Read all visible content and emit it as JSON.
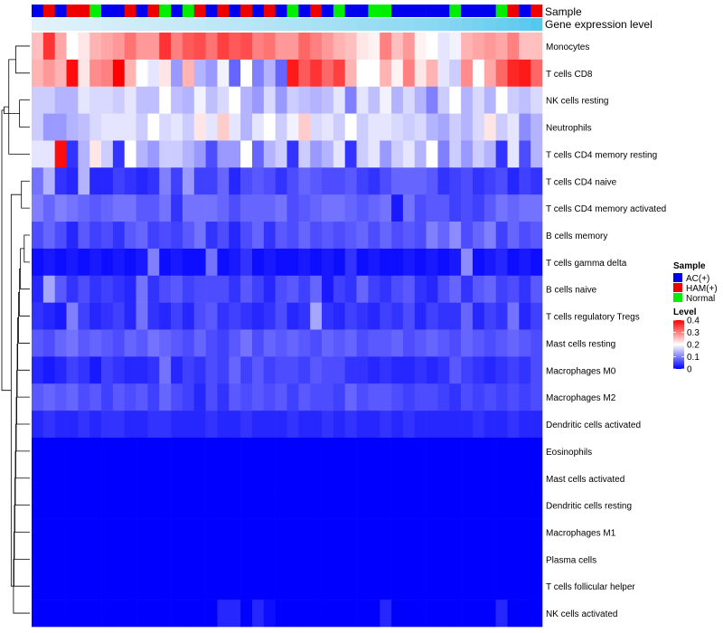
{
  "chart_data": {
    "type": "heatmap",
    "title": "",
    "annotation_tracks": [
      "Sample",
      "Gene expression level"
    ],
    "sample_groups": [
      "AC(+)",
      "HAM(+)",
      "AC(+)",
      "HAM(+)",
      "HAM(+)",
      "Normal",
      "AC(+)",
      "AC(+)",
      "HAM(+)",
      "AC(+)",
      "HAM(+)",
      "Normal",
      "AC(+)",
      "Normal",
      "HAM(+)",
      "AC(+)",
      "HAM(+)",
      "AC(+)",
      "HAM(+)",
      "AC(+)",
      "HAM(+)",
      "AC(+)",
      "Normal",
      "AC(+)",
      "HAM(+)",
      "AC(+)",
      "Normal",
      "AC(+)",
      "AC(+)",
      "Normal",
      "Normal",
      "AC(+)",
      "AC(+)",
      "AC(+)",
      "AC(+)",
      "AC(+)",
      "Normal",
      "AC(+)",
      "AC(+)",
      "AC(+)",
      "Normal",
      "HAM(+)",
      "AC(+)",
      "HAM(+)"
    ],
    "gene_expression_level": [
      0.05,
      0.06,
      0.07,
      0.09,
      0.1,
      0.12,
      0.14,
      0.15,
      0.17,
      0.19,
      0.2,
      0.21,
      0.23,
      0.24,
      0.26,
      0.28,
      0.3,
      0.31,
      0.33,
      0.35,
      0.37,
      0.38,
      0.4,
      0.42,
      0.44,
      0.46,
      0.48,
      0.5,
      0.52,
      0.54,
      0.56,
      0.58,
      0.6,
      0.62,
      0.64,
      0.66,
      0.7,
      0.74,
      0.78,
      0.82,
      0.86,
      0.9,
      0.95,
      1.0
    ],
    "rows": [
      "Monocytes",
      "T cells CD8",
      "NK cells resting",
      "Neutrophils",
      "T cells CD4 memory resting",
      "T cells CD4 naive",
      "T cells CD4 memory activated",
      "B cells memory",
      "T cells gamma delta",
      "B cells naive",
      "T cells regulatory  Tregs",
      "Mast cells resting",
      "Macrophages M0",
      "Macrophages M2",
      "Dendritic cells activated",
      "Eosinophils",
      "Mast cells activated",
      "Dendritic cells resting",
      "Macrophages M1",
      "Plasma cells",
      "T cells follicular helper",
      "NK cells activated"
    ],
    "values": [
      [
        0.25,
        0.36,
        0.27,
        0.2,
        0.22,
        0.26,
        0.27,
        0.28,
        0.31,
        0.28,
        0.28,
        0.36,
        0.3,
        0.33,
        0.34,
        0.31,
        0.35,
        0.33,
        0.34,
        0.3,
        0.31,
        0.28,
        0.28,
        0.32,
        0.3,
        0.28,
        0.26,
        0.25,
        0.22,
        0.21,
        0.3,
        0.25,
        0.28,
        0.21,
        0.2,
        0.18,
        0.19,
        0.26,
        0.27,
        0.28,
        0.27,
        0.3,
        0.25,
        0.25
      ],
      [
        0.26,
        0.28,
        0.26,
        0.39,
        0.22,
        0.29,
        0.3,
        0.4,
        0.26,
        0.2,
        0.18,
        0.22,
        0.12,
        0.26,
        0.14,
        0.12,
        0.19,
        0.08,
        0.2,
        0.1,
        0.14,
        0.08,
        0.38,
        0.33,
        0.36,
        0.32,
        0.35,
        0.26,
        0.2,
        0.2,
        0.26,
        0.21,
        0.3,
        0.22,
        0.26,
        0.18,
        0.16,
        0.29,
        0.2,
        0.27,
        0.32,
        0.37,
        0.38,
        0.32
      ],
      [
        0.16,
        0.16,
        0.14,
        0.14,
        0.18,
        0.17,
        0.17,
        0.16,
        0.18,
        0.15,
        0.15,
        0.2,
        0.15,
        0.14,
        0.19,
        0.15,
        0.17,
        0.2,
        0.14,
        0.12,
        0.17,
        0.12,
        0.16,
        0.15,
        0.14,
        0.15,
        0.18,
        0.1,
        0.18,
        0.15,
        0.19,
        0.14,
        0.17,
        0.14,
        0.1,
        0.16,
        0.2,
        0.14,
        0.17,
        0.14,
        0.2,
        0.16,
        0.15,
        0.17
      ],
      [
        0.16,
        0.12,
        0.12,
        0.14,
        0.15,
        0.17,
        0.18,
        0.18,
        0.18,
        0.16,
        0.2,
        0.17,
        0.18,
        0.16,
        0.22,
        0.18,
        0.24,
        0.18,
        0.14,
        0.18,
        0.2,
        0.16,
        0.19,
        0.24,
        0.17,
        0.18,
        0.16,
        0.2,
        0.16,
        0.18,
        0.18,
        0.17,
        0.16,
        0.17,
        0.14,
        0.13,
        0.16,
        0.14,
        0.17,
        0.22,
        0.16,
        0.18,
        0.11,
        0.14
      ],
      [
        0.18,
        0.18,
        0.39,
        0.04,
        0.14,
        0.22,
        0.16,
        0.04,
        0.2,
        0.14,
        0.12,
        0.16,
        0.16,
        0.14,
        0.12,
        0.06,
        0.12,
        0.12,
        0.2,
        0.08,
        0.14,
        0.16,
        0.04,
        0.16,
        0.12,
        0.14,
        0.18,
        0.04,
        0.16,
        0.18,
        0.12,
        0.16,
        0.18,
        0.14,
        0.2,
        0.1,
        0.16,
        0.12,
        0.16,
        0.14,
        0.04,
        0.18,
        0.06,
        0.14
      ],
      [
        0.09,
        0.14,
        0.04,
        0.03,
        0.14,
        0.03,
        0.03,
        0.05,
        0.04,
        0.03,
        0.04,
        0.1,
        0.05,
        0.12,
        0.05,
        0.05,
        0.08,
        0.03,
        0.06,
        0.07,
        0.06,
        0.04,
        0.06,
        0.08,
        0.07,
        0.06,
        0.06,
        0.07,
        0.05,
        0.04,
        0.06,
        0.08,
        0.08,
        0.08,
        0.07,
        0.04,
        0.05,
        0.06,
        0.04,
        0.05,
        0.06,
        0.03,
        0.05,
        0.04
      ],
      [
        0.1,
        0.08,
        0.1,
        0.09,
        0.08,
        0.07,
        0.08,
        0.09,
        0.09,
        0.07,
        0.07,
        0.09,
        0.04,
        0.09,
        0.09,
        0.09,
        0.08,
        0.06,
        0.08,
        0.08,
        0.08,
        0.09,
        0.06,
        0.07,
        0.08,
        0.09,
        0.09,
        0.08,
        0.07,
        0.08,
        0.09,
        0.02,
        0.09,
        0.06,
        0.07,
        0.07,
        0.05,
        0.06,
        0.05,
        0.07,
        0.09,
        0.08,
        0.09,
        0.09
      ],
      [
        0.06,
        0.08,
        0.06,
        0.03,
        0.07,
        0.05,
        0.06,
        0.04,
        0.07,
        0.08,
        0.05,
        0.06,
        0.05,
        0.07,
        0.09,
        0.04,
        0.06,
        0.03,
        0.06,
        0.08,
        0.04,
        0.07,
        0.06,
        0.08,
        0.06,
        0.07,
        0.06,
        0.07,
        0.08,
        0.06,
        0.08,
        0.06,
        0.07,
        0.06,
        0.1,
        0.08,
        0.11,
        0.06,
        0.08,
        0.1,
        0.05,
        0.08,
        0.06,
        0.07
      ],
      [
        0.01,
        0.02,
        0.01,
        0.02,
        0.01,
        0.02,
        0.01,
        0.02,
        0.01,
        0.02,
        0.1,
        0.01,
        0.02,
        0.01,
        0.01,
        0.09,
        0.01,
        0.02,
        0.04,
        0.01,
        0.02,
        0.01,
        0.01,
        0.02,
        0.01,
        0.02,
        0.01,
        0.04,
        0.01,
        0.02,
        0.01,
        0.01,
        0.02,
        0.01,
        0.02,
        0.01,
        0.02,
        0.11,
        0.01,
        0.02,
        0.03,
        0.01,
        0.02,
        0.01
      ],
      [
        0.03,
        0.13,
        0.07,
        0.04,
        0.06,
        0.04,
        0.05,
        0.04,
        0.03,
        0.09,
        0.04,
        0.06,
        0.07,
        0.05,
        0.06,
        0.06,
        0.06,
        0.04,
        0.07,
        0.05,
        0.03,
        0.06,
        0.07,
        0.05,
        0.08,
        0.02,
        0.05,
        0.04,
        0.08,
        0.05,
        0.04,
        0.06,
        0.07,
        0.04,
        0.03,
        0.06,
        0.08,
        0.04,
        0.07,
        0.08,
        0.05,
        0.06,
        0.04,
        0.07
      ],
      [
        0.04,
        0.03,
        0.02,
        0.1,
        0.05,
        0.03,
        0.04,
        0.05,
        0.03,
        0.09,
        0.04,
        0.03,
        0.05,
        0.03,
        0.06,
        0.07,
        0.04,
        0.05,
        0.04,
        0.03,
        0.04,
        0.06,
        0.03,
        0.04,
        0.13,
        0.04,
        0.03,
        0.05,
        0.04,
        0.03,
        0.05,
        0.04,
        0.06,
        0.03,
        0.05,
        0.04,
        0.04,
        0.08,
        0.03,
        0.05,
        0.04,
        0.09,
        0.03,
        0.05
      ],
      [
        0.07,
        0.06,
        0.08,
        0.09,
        0.07,
        0.08,
        0.07,
        0.06,
        0.08,
        0.07,
        0.09,
        0.08,
        0.07,
        0.06,
        0.08,
        0.06,
        0.05,
        0.07,
        0.09,
        0.06,
        0.08,
        0.07,
        0.08,
        0.07,
        0.06,
        0.08,
        0.07,
        0.08,
        0.06,
        0.07,
        0.07,
        0.08,
        0.06,
        0.07,
        0.08,
        0.07,
        0.06,
        0.08,
        0.07,
        0.06,
        0.07,
        0.08,
        0.07,
        0.06
      ],
      [
        0.03,
        0.02,
        0.03,
        0.05,
        0.04,
        0.02,
        0.05,
        0.04,
        0.03,
        0.03,
        0.04,
        0.09,
        0.03,
        0.05,
        0.04,
        0.06,
        0.05,
        0.08,
        0.05,
        0.07,
        0.05,
        0.06,
        0.06,
        0.05,
        0.07,
        0.06,
        0.06,
        0.04,
        0.04,
        0.03,
        0.04,
        0.03,
        0.03,
        0.04,
        0.03,
        0.04,
        0.07,
        0.05,
        0.04,
        0.03,
        0.04,
        0.05,
        0.04,
        0.06
      ],
      [
        0.07,
        0.08,
        0.07,
        0.08,
        0.06,
        0.07,
        0.05,
        0.07,
        0.06,
        0.07,
        0.05,
        0.08,
        0.06,
        0.05,
        0.03,
        0.06,
        0.04,
        0.07,
        0.06,
        0.07,
        0.06,
        0.07,
        0.05,
        0.07,
        0.06,
        0.06,
        0.05,
        0.08,
        0.06,
        0.07,
        0.07,
        0.06,
        0.05,
        0.06,
        0.06,
        0.05,
        0.04,
        0.06,
        0.05,
        0.06,
        0.05,
        0.06,
        0.05,
        0.06
      ],
      [
        0.03,
        0.04,
        0.03,
        0.03,
        0.04,
        0.03,
        0.04,
        0.04,
        0.03,
        0.03,
        0.04,
        0.04,
        0.03,
        0.03,
        0.03,
        0.04,
        0.03,
        0.03,
        0.04,
        0.03,
        0.03,
        0.03,
        0.04,
        0.03,
        0.03,
        0.04,
        0.03,
        0.04,
        0.03,
        0.03,
        0.04,
        0.03,
        0.04,
        0.03,
        0.03,
        0.03,
        0.03,
        0.03,
        0.04,
        0.03,
        0.03,
        0.04,
        0.03,
        0.03
      ],
      [
        0,
        0,
        0,
        0,
        0,
        0,
        0,
        0,
        0,
        0,
        0,
        0,
        0,
        0,
        0,
        0,
        0,
        0,
        0,
        0,
        0,
        0,
        0,
        0,
        0,
        0,
        0,
        0,
        0,
        0,
        0,
        0,
        0,
        0,
        0,
        0,
        0,
        0,
        0,
        0,
        0,
        0,
        0,
        0
      ],
      [
        0,
        0,
        0,
        0,
        0,
        0,
        0,
        0,
        0,
        0,
        0,
        0,
        0,
        0,
        0,
        0,
        0,
        0,
        0,
        0,
        0,
        0,
        0,
        0,
        0,
        0,
        0,
        0,
        0,
        0,
        0,
        0,
        0,
        0,
        0,
        0,
        0,
        0,
        0,
        0,
        0,
        0,
        0,
        0
      ],
      [
        0,
        0,
        0,
        0,
        0,
        0,
        0,
        0,
        0,
        0,
        0,
        0,
        0,
        0,
        0,
        0,
        0,
        0,
        0,
        0,
        0,
        0,
        0,
        0,
        0,
        0,
        0,
        0,
        0,
        0,
        0,
        0,
        0,
        0,
        0,
        0,
        0,
        0,
        0,
        0,
        0,
        0,
        0,
        0
      ],
      [
        0,
        0,
        0,
        0,
        0,
        0,
        0,
        0,
        0,
        0,
        0,
        0,
        0,
        0,
        0,
        0,
        0,
        0,
        0,
        0,
        0,
        0,
        0,
        0,
        0,
        0,
        0,
        0,
        0,
        0,
        0,
        0,
        0,
        0,
        0,
        0,
        0,
        0,
        0,
        0,
        0,
        0,
        0,
        0
      ],
      [
        0,
        0,
        0,
        0,
        0,
        0,
        0,
        0,
        0,
        0,
        0,
        0,
        0,
        0,
        0,
        0,
        0,
        0,
        0,
        0,
        0,
        0,
        0,
        0,
        0,
        0,
        0,
        0,
        0,
        0,
        0,
        0,
        0,
        0,
        0,
        0,
        0,
        0,
        0,
        0,
        0,
        0,
        0,
        0
      ],
      [
        0,
        0,
        0,
        0,
        0,
        0,
        0,
        0,
        0,
        0,
        0,
        0,
        0,
        0,
        0,
        0,
        0,
        0,
        0,
        0,
        0,
        0,
        0,
        0,
        0,
        0,
        0,
        0,
        0,
        0,
        0,
        0,
        0,
        0,
        0,
        0,
        0,
        0,
        0,
        0,
        0,
        0,
        0,
        0
      ],
      [
        0,
        0,
        0,
        0,
        0,
        0,
        0,
        0,
        0,
        0,
        0,
        0,
        0,
        0,
        0,
        0,
        0.03,
        0.03,
        0,
        0.03,
        0.01,
        0,
        0,
        0,
        0,
        0,
        0,
        0,
        0,
        0,
        0.03,
        0,
        0,
        0,
        0,
        0,
        0,
        0,
        0,
        0,
        0.03,
        0,
        0,
        0
      ]
    ],
    "color_scale": {
      "min": 0,
      "max": 0.4,
      "low": "#0000ff",
      "mid": "#ffffff",
      "high": "#ff0000",
      "mid_value": 0.2
    },
    "legend": {
      "sample_title": "Sample",
      "sample_items": [
        {
          "label": "AC(+)",
          "color": "#0000ee"
        },
        {
          "label": "HAM(+)",
          "color": "#ee0000"
        },
        {
          "label": "Normal",
          "color": "#00ee00"
        }
      ],
      "level_title": "Level",
      "level_ticks": [
        0.4,
        0.3,
        0.2,
        0.1,
        0
      ],
      "placement": "right"
    },
    "group_colors": {
      "AC(+)": "#0000ee",
      "HAM(+)": "#ee0000",
      "Normal": "#00ee00"
    },
    "expr_track_colors": {
      "low": "#e8f4fb",
      "high": "#56c8ee"
    },
    "row_dendrogram": [
      [
        0,
        1
      ],
      [
        2,
        3
      ],
      [
        22,
        4
      ],
      [
        23,
        24
      ],
      [
        5,
        6
      ],
      [
        7,
        8
      ],
      [
        27,
        9
      ],
      [
        28,
        10
      ],
      [
        29,
        11
      ],
      [
        30,
        12
      ],
      [
        31,
        13
      ],
      [
        32,
        14
      ],
      [
        33,
        15
      ],
      [
        34,
        16
      ],
      [
        35,
        17
      ],
      [
        36,
        18
      ],
      [
        37,
        19
      ],
      [
        38,
        20
      ],
      [
        39,
        21
      ],
      [
        26,
        40
      ],
      [
        25,
        41
      ]
    ],
    "row_dendrogram_heights": [
      0.3,
      0.22,
      0.45,
      0.55,
      0.18,
      0.12,
      0.2,
      0.22,
      0.24,
      0.26,
      0.27,
      0.28,
      0.29,
      0.3,
      0.31,
      0.32,
      0.33,
      0.34,
      0.35,
      0.4,
      0.6
    ]
  }
}
